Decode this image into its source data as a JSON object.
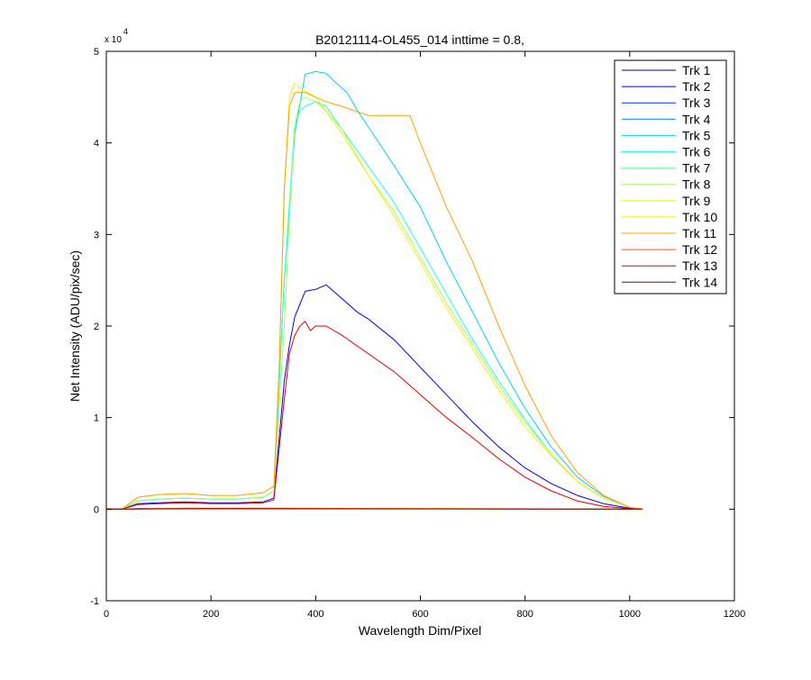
{
  "chart_data": {
    "type": "line",
    "title": "B20121114-OL455_014 inttime = 0.8,",
    "xlabel": "Wavelength Dim/Pixel",
    "ylabel": "Net Intensity (ADU/pix/sec)",
    "xlim": [
      0,
      1200
    ],
    "ylim": [
      -10000,
      50000
    ],
    "xticks": [
      0,
      200,
      400,
      600,
      800,
      1000,
      1200
    ],
    "xtick_labels": [
      "0",
      "200",
      "400",
      "600",
      "800",
      "1000",
      "1200"
    ],
    "yticks": [
      -10000,
      0,
      10000,
      20000,
      30000,
      40000,
      50000
    ],
    "ytick_labels": [
      "-1",
      "0",
      "1",
      "2",
      "3",
      "4",
      "5"
    ],
    "y_exponent_label": "x 10",
    "y_exponent": "4",
    "grid": false,
    "legend_position": "top-right",
    "series": [
      {
        "name": "Trk 1",
        "color": "#00008f",
        "x": [
          0,
          30,
          60,
          150,
          300,
          330,
          1024
        ],
        "y": [
          0,
          0,
          50,
          50,
          50,
          50,
          0
        ]
      },
      {
        "name": "Trk 2",
        "color": "#0000df",
        "x": [
          0,
          30,
          60,
          100,
          150,
          200,
          250,
          300,
          320,
          340,
          350,
          360,
          380,
          400,
          420,
          440,
          480,
          500,
          550,
          600,
          650,
          700,
          750,
          800,
          850,
          900,
          950,
          1000,
          1024
        ],
        "y": [
          0,
          0,
          600,
          700,
          800,
          700,
          700,
          800,
          1200,
          14000,
          18000,
          21000,
          23800,
          24000,
          24500,
          23500,
          21500,
          20800,
          18500,
          15500,
          12500,
          9500,
          6800,
          4500,
          2800,
          1500,
          600,
          100,
          0
        ]
      },
      {
        "name": "Trk 3",
        "color": "#0030ff",
        "x": [
          0,
          30,
          150,
          300,
          330,
          1024
        ],
        "y": [
          0,
          0,
          60,
          60,
          60,
          0
        ]
      },
      {
        "name": "Trk 4",
        "color": "#0080ff",
        "x": [
          0,
          30,
          150,
          300,
          330,
          1024
        ],
        "y": [
          0,
          0,
          70,
          70,
          70,
          0
        ]
      },
      {
        "name": "Trk 5",
        "color": "#00cfff",
        "x": [
          0,
          30,
          60,
          100,
          150,
          200,
          250,
          300,
          320,
          340,
          360,
          380,
          400,
          420,
          440,
          460,
          480,
          500,
          550,
          600,
          650,
          700,
          750,
          800,
          850,
          900,
          950,
          1000,
          1024
        ],
        "y": [
          0,
          0,
          900,
          1100,
          1200,
          1100,
          1100,
          1300,
          2000,
          25000,
          41000,
          47500,
          47800,
          47600,
          46500,
          45500,
          43500,
          41800,
          37500,
          33000,
          27000,
          21500,
          16000,
          11000,
          6800,
          3500,
          1400,
          200,
          0
        ]
      },
      {
        "name": "Trk 6",
        "color": "#20ffdf",
        "x": [
          0,
          30,
          60,
          100,
          150,
          200,
          250,
          300,
          320,
          340,
          360,
          370,
          380,
          400,
          420,
          450,
          500,
          550,
          600,
          650,
          700,
          750,
          800,
          850,
          900,
          950,
          1000,
          1024
        ],
        "y": [
          0,
          0,
          900,
          1100,
          1200,
          1100,
          1100,
          1300,
          2000,
          25000,
          42000,
          43500,
          44000,
          44500,
          44000,
          41500,
          37500,
          33500,
          28500,
          23500,
          18500,
          14000,
          9800,
          6000,
          3000,
          1200,
          200,
          0
        ]
      },
      {
        "name": "Trk 7",
        "color": "#70ff8f",
        "x": [
          0,
          30,
          150,
          300,
          330,
          1024
        ],
        "y": [
          0,
          0,
          80,
          80,
          80,
          0
        ]
      },
      {
        "name": "Trk 8",
        "color": "#9fff60",
        "x": [
          0,
          30,
          60,
          100,
          150,
          200,
          250,
          300,
          320,
          340,
          350,
          360,
          370,
          380,
          400,
          420,
          450,
          500,
          550,
          600,
          650,
          700,
          750,
          800,
          850,
          900,
          950,
          1000,
          1024
        ],
        "y": [
          0,
          0,
          900,
          1100,
          1200,
          1100,
          1100,
          1300,
          2000,
          20000,
          32000,
          42000,
          44500,
          45000,
          44500,
          43500,
          41500,
          36500,
          32500,
          27500,
          22500,
          18000,
          13500,
          9500,
          6000,
          3000,
          1200,
          200,
          0
        ]
      },
      {
        "name": "Trk 9",
        "color": "#cfff30",
        "x": [
          0,
          30,
          150,
          300,
          330,
          1024
        ],
        "y": [
          0,
          0,
          90,
          90,
          90,
          0
        ]
      },
      {
        "name": "Trk 10",
        "color": "#ffef00",
        "x": [
          0,
          30,
          60,
          100,
          150,
          200,
          250,
          300,
          320,
          330,
          340,
          350,
          360,
          370,
          400,
          420,
          450,
          500,
          550,
          600,
          650,
          700,
          750,
          800,
          850,
          900,
          950,
          1000,
          1024
        ],
        "y": [
          0,
          0,
          1300,
          1600,
          1700,
          1500,
          1500,
          1800,
          2500,
          15000,
          35000,
          45000,
          46500,
          46000,
          45000,
          43500,
          41000,
          36500,
          32000,
          27000,
          22000,
          17500,
          13000,
          9000,
          5800,
          3000,
          1200,
          200,
          0
        ]
      },
      {
        "name": "Trk 11",
        "color": "#ffa000",
        "x": [
          0,
          30,
          60,
          100,
          150,
          200,
          250,
          300,
          320,
          330,
          340,
          350,
          360,
          380,
          400,
          420,
          450,
          500,
          550,
          580,
          600,
          650,
          700,
          750,
          800,
          850,
          900,
          950,
          1000,
          1024
        ],
        "y": [
          0,
          0,
          1300,
          1600,
          1700,
          1500,
          1500,
          1800,
          2500,
          15000,
          35000,
          44000,
          45500,
          45500,
          45000,
          44500,
          44000,
          43000,
          43000,
          43000,
          40000,
          33000,
          27000,
          20000,
          13500,
          8000,
          4000,
          1500,
          200,
          0
        ]
      },
      {
        "name": "Trk 12",
        "color": "#ff5000",
        "x": [
          0,
          30,
          150,
          300,
          330,
          1024
        ],
        "y": [
          0,
          0,
          100,
          100,
          100,
          0
        ]
      },
      {
        "name": "Trk 13",
        "color": "#df0000",
        "x": [
          0,
          30,
          60,
          100,
          150,
          200,
          250,
          300,
          320,
          340,
          350,
          360,
          370,
          380,
          390,
          400,
          420,
          450,
          500,
          550,
          600,
          650,
          700,
          750,
          800,
          850,
          900,
          950,
          1000,
          1024
        ],
        "y": [
          0,
          0,
          500,
          600,
          700,
          600,
          600,
          700,
          1000,
          12000,
          17000,
          19000,
          20000,
          20500,
          19500,
          20000,
          20000,
          19000,
          17000,
          15000,
          12500,
          10000,
          7800,
          5500,
          3500,
          2000,
          900,
          300,
          50,
          0
        ]
      },
      {
        "name": "Trk 14",
        "color": "#8f0000",
        "x": [
          0,
          30,
          150,
          300,
          330,
          1024
        ],
        "y": [
          0,
          0,
          40,
          40,
          40,
          0
        ]
      }
    ]
  }
}
